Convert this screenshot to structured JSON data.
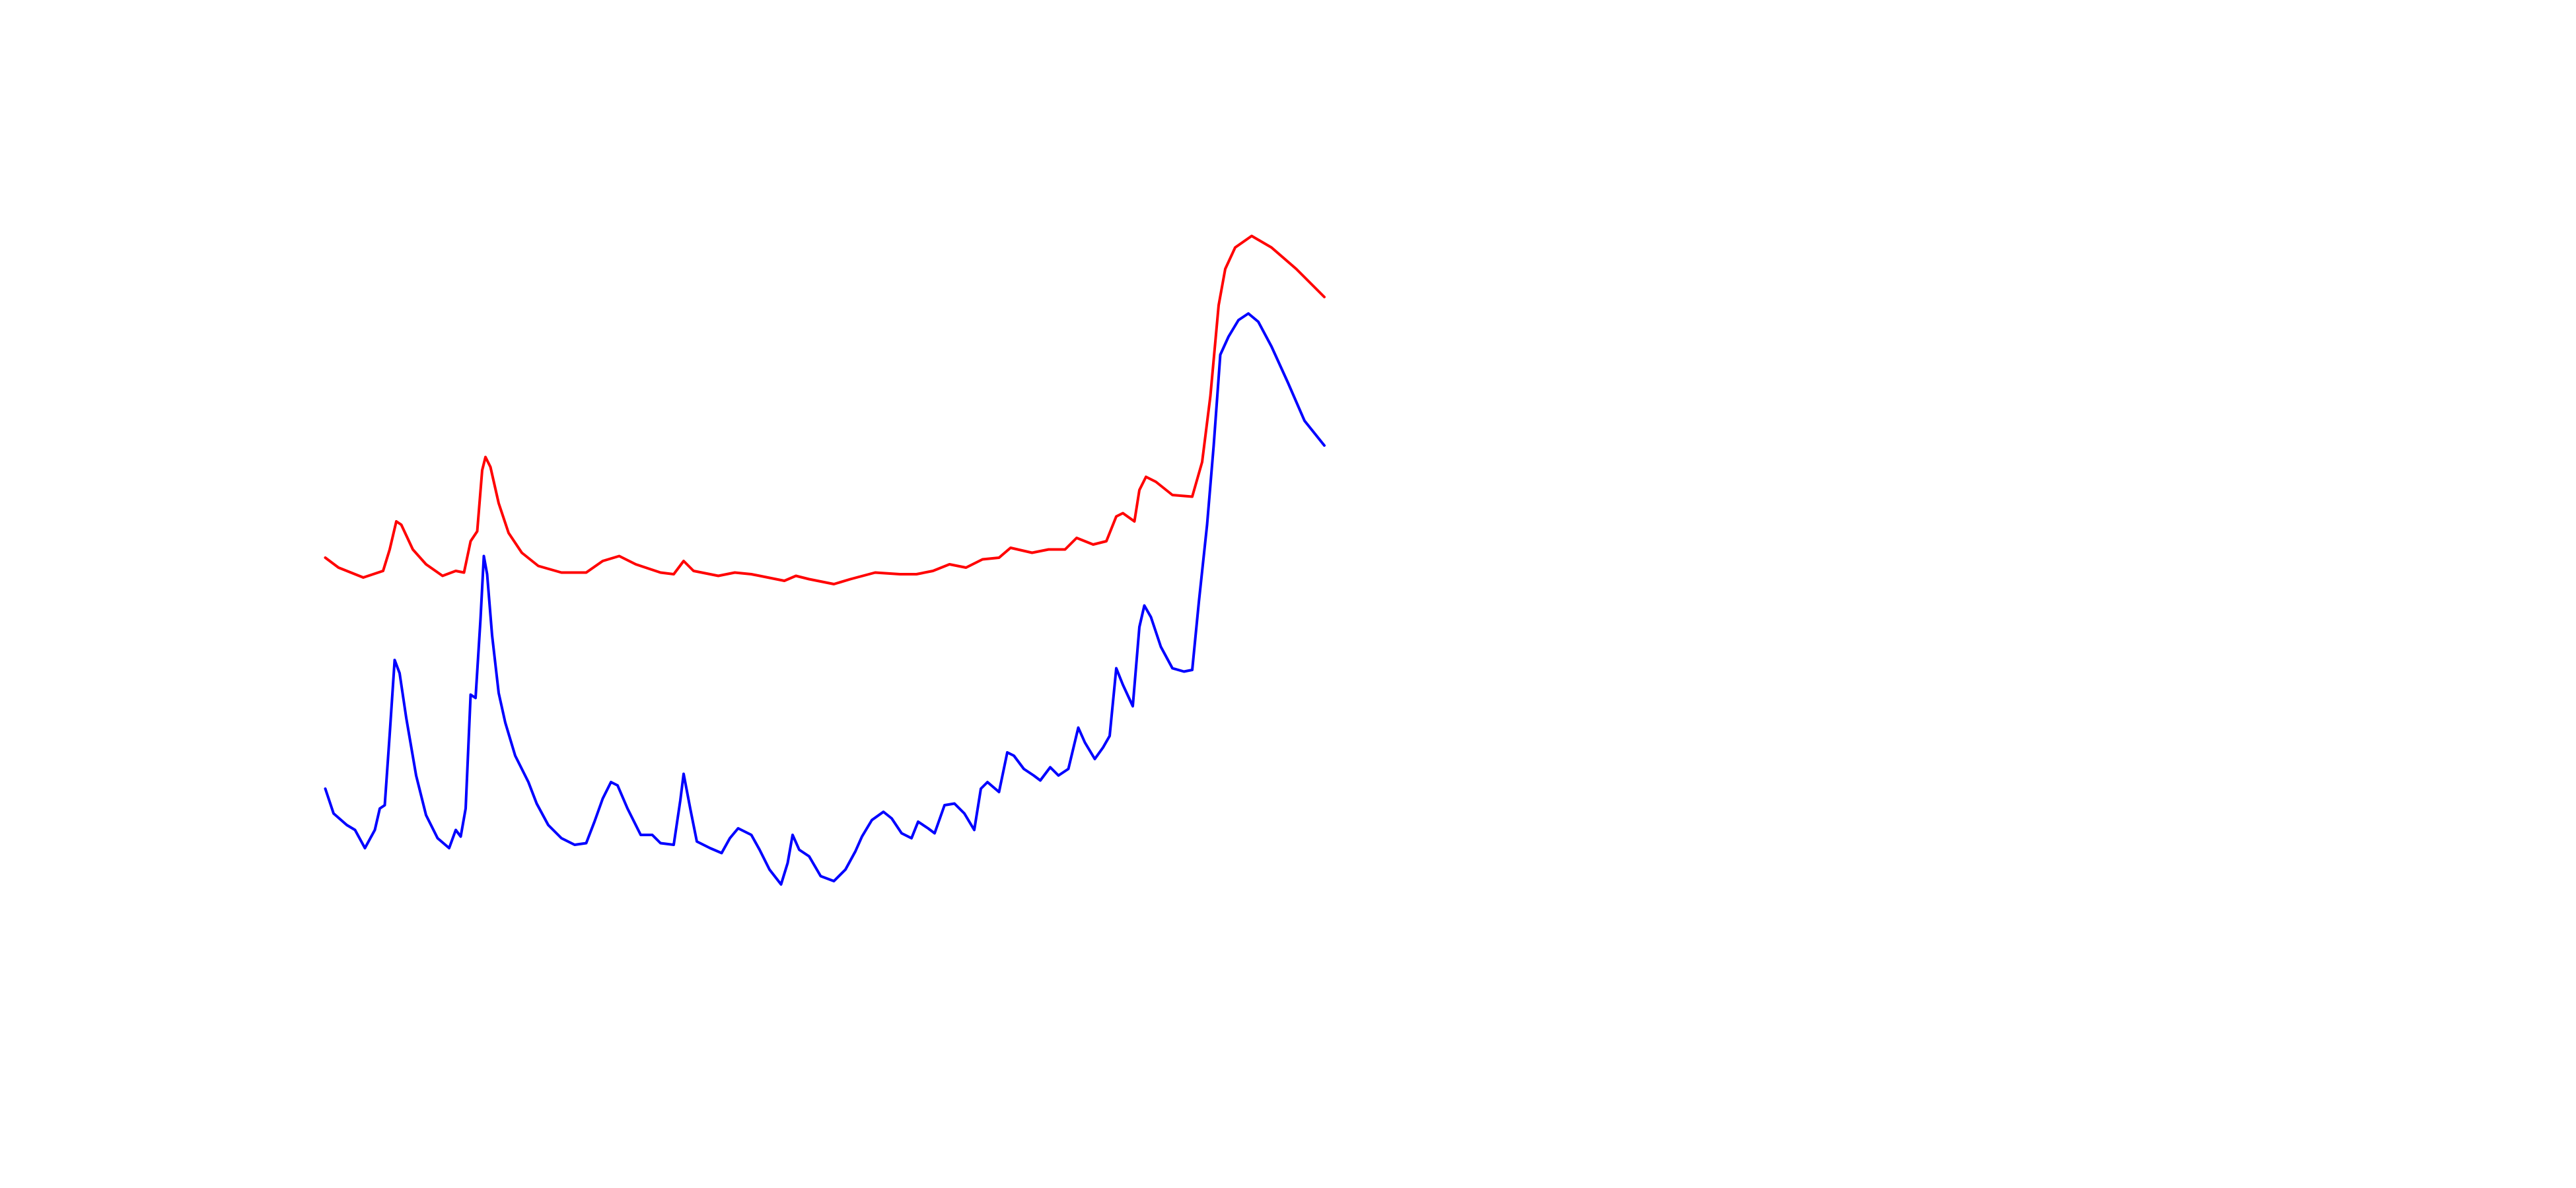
{
  "chart_data": {
    "type": "line",
    "series": [
      {
        "color": "#ff0000",
        "x": [
          197,
          205,
          220,
          232,
          236,
          240,
          243,
          250,
          258,
          268,
          276,
          281,
          285,
          289,
          292,
          294,
          297,
          302,
          308,
          316,
          326,
          340,
          355,
          365,
          375,
          385,
          400,
          408,
          414,
          420,
          435,
          445,
          455,
          470,
          475,
          482,
          490,
          505,
          515,
          530,
          545,
          555,
          565,
          575,
          585,
          595,
          605,
          612,
          625,
          635,
          645,
          652,
          662,
          670,
          676,
          680,
          687,
          690,
          694,
          700,
          710,
          722,
          728,
          733,
          738,
          742,
          748,
          758,
          770,
          785,
          802
        ],
        "values": [
          382,
          376,
          370,
          374,
          387,
          404,
          402,
          387,
          378,
          371,
          374,
          373,
          392,
          398,
          435,
          443,
          437,
          415,
          397,
          385,
          377,
          373,
          373,
          380,
          383,
          378,
          373,
          372,
          380,
          374,
          371,
          373,
          372,
          369,
          368,
          371,
          369,
          366,
          369,
          373,
          372,
          372,
          374,
          378,
          376,
          381,
          382,
          388,
          385,
          387,
          387,
          394,
          390,
          392,
          407,
          409,
          404,
          423,
          431,
          428,
          420,
          419,
          440,
          480,
          535,
          557,
          570,
          577,
          570,
          557,
          540
        ]
      },
      {
        "color": "#0000ff",
        "x": [
          197,
          202,
          210,
          215,
          221,
          227,
          230,
          233,
          236,
          239,
          242,
          246,
          252,
          258,
          265,
          272,
          276,
          279,
          282,
          285,
          288,
          291,
          293,
          295,
          298,
          302,
          306,
          312,
          320,
          325,
          332,
          340,
          348,
          355,
          360,
          365,
          370,
          374,
          380,
          388,
          395,
          400,
          408,
          412,
          414,
          418,
          422,
          430,
          437,
          442,
          447,
          455,
          460,
          466,
          473,
          477,
          480,
          484,
          490,
          497,
          505,
          512,
          518,
          522,
          528,
          535,
          540,
          546,
          552,
          556,
          562,
          566,
          572,
          578,
          584,
          590,
          594,
          598,
          605,
          610,
          614,
          620,
          626,
          630,
          636,
          641,
          647,
          653,
          657,
          663,
          668,
          672,
          676,
          680,
          686,
          690,
          693,
          697,
          703,
          710,
          717,
          722,
          726,
          731,
          735,
          739,
          744,
          750,
          756,
          762,
          770,
          780,
          790,
          802
        ],
        "values": [
          242,
          227,
          220,
          217,
          206,
          217,
          230,
          232,
          275,
          320,
          312,
          285,
          250,
          226,
          212,
          206,
          217,
          213,
          230,
          299,
          297,
          345,
          383,
          372,
          335,
          300,
          282,
          262,
          246,
          233,
          220,
          212,
          208,
          209,
          222,
          236,
          246,
          244,
          230,
          214,
          214,
          209,
          208,
          235,
          251,
          230,
          210,
          206,
          203,
          212,
          218,
          214,
          205,
          193,
          184,
          197,
          214,
          205,
          201,
          189,
          186,
          193,
          204,
          213,
          223,
          228,
          224,
          215,
          212,
          222,
          218,
          215,
          232,
          233,
          227,
          217,
          242,
          246,
          240,
          264,
          262,
          254,
          250,
          247,
          255,
          250,
          254,
          279,
          270,
          260,
          267,
          274,
          315,
          305,
          292,
          340,
          353,
          346,
          328,
          315,
          313,
          314,
          355,
          402,
          450,
          505,
          516,
          526,
          530,
          525,
          510,
          488,
          465,
          450
        ]
      }
    ]
  }
}
